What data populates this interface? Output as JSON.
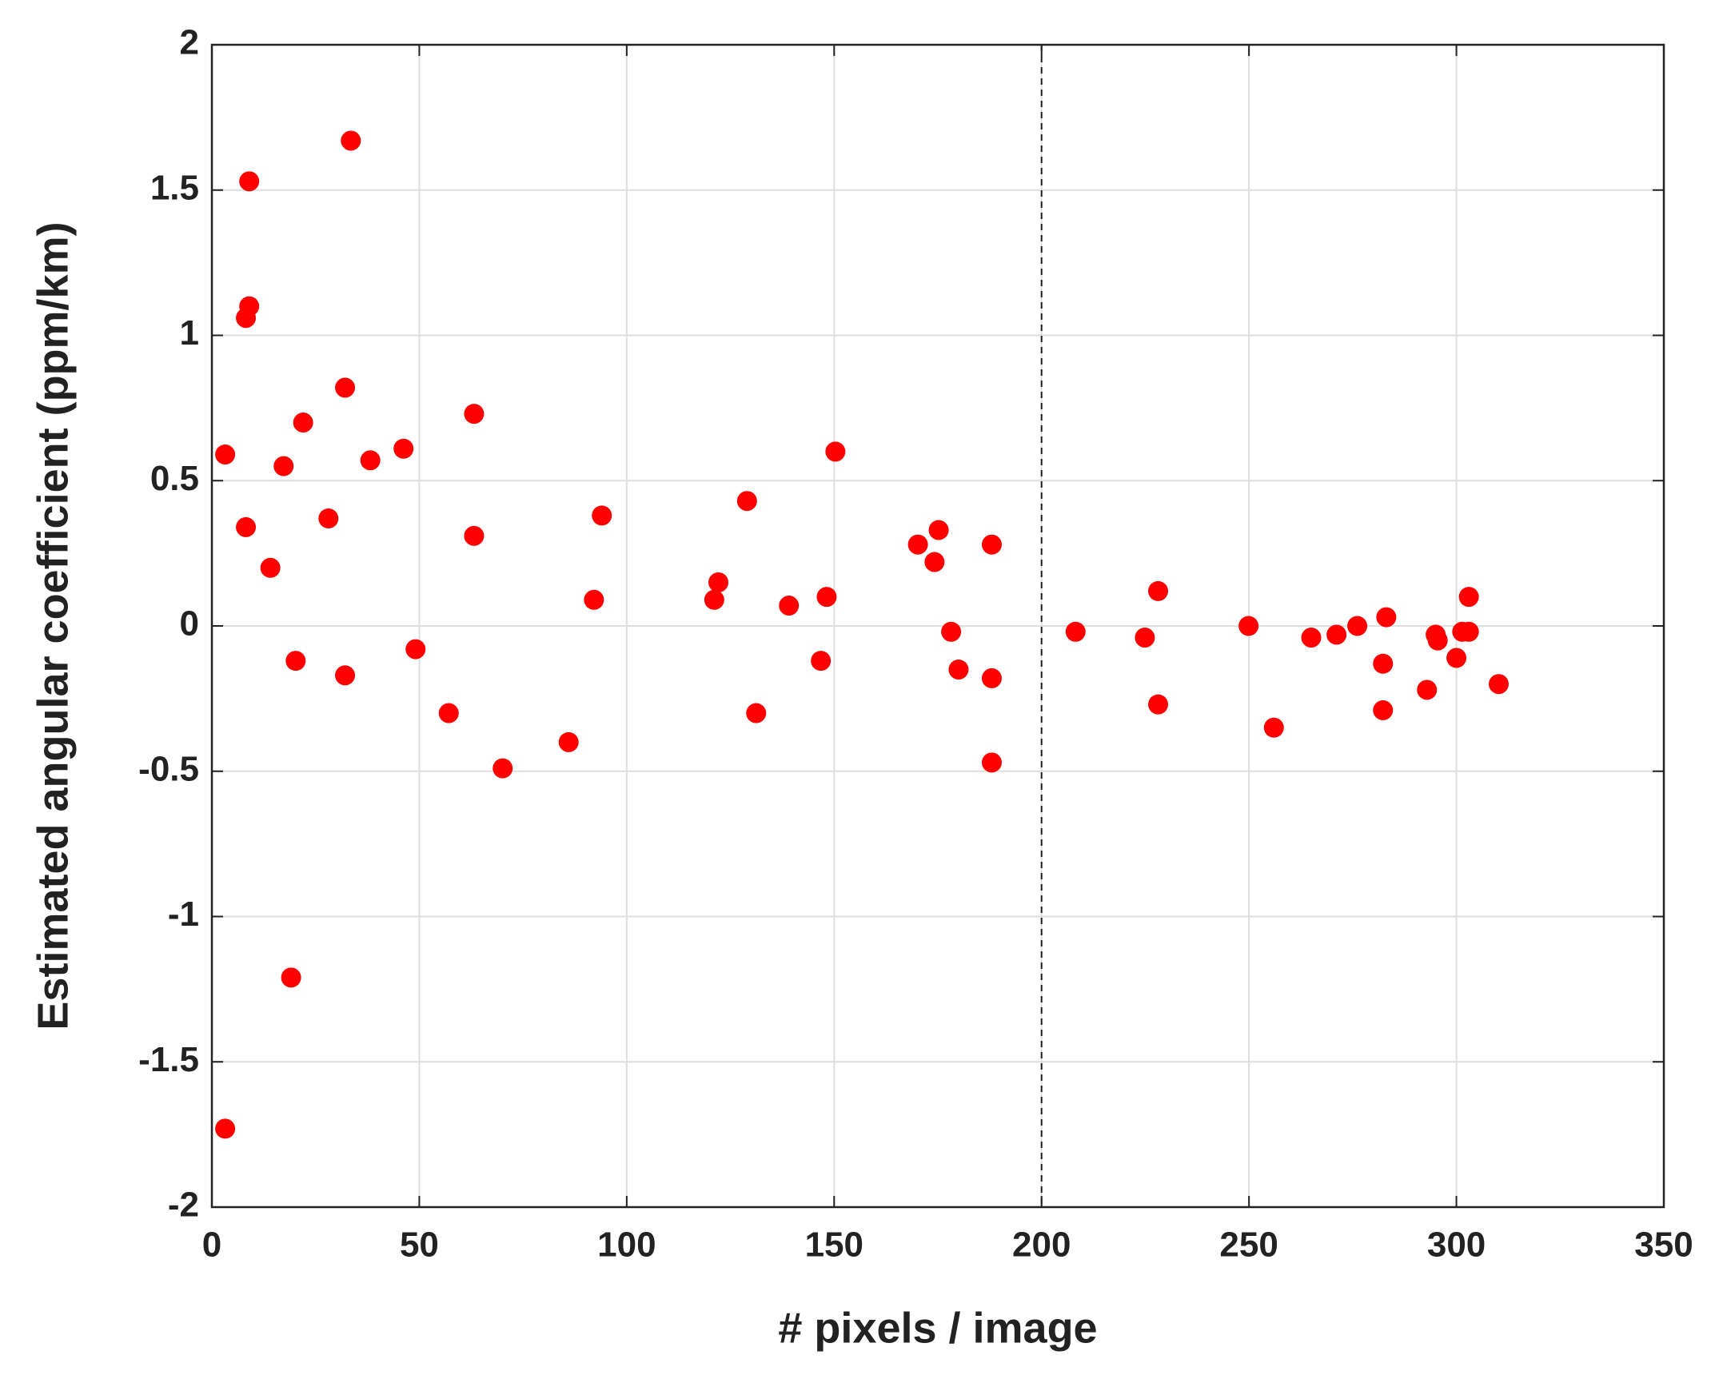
{
  "chart_data": {
    "type": "scatter",
    "xlabel": "# pixels / image",
    "ylabel": "Estimated angular coefficient (ppm/km)",
    "color": "#ff0000",
    "grid": true,
    "reference_line_x": 200,
    "xlim": [
      0,
      350
    ],
    "xticks": [
      0,
      50,
      100,
      150,
      200,
      250,
      300,
      350
    ],
    "ylim": [
      -2,
      2
    ],
    "yticks": [
      -2,
      -1.5,
      -1,
      -0.5,
      0,
      0.5,
      1,
      1.5,
      2
    ],
    "x": [
      3.2,
      3.2,
      8.2,
      8.2,
      9.0,
      9.0,
      14.1,
      17.3,
      19.1,
      20.2,
      22.0,
      28.1,
      32.1,
      32.1,
      33.5,
      38.2,
      46.2,
      49.1,
      57.1,
      63.2,
      63.2,
      70.1,
      86.0,
      92.1,
      94.0,
      121.1,
      122.1,
      129.0,
      131.2,
      139.1,
      146.8,
      148.2,
      150.3,
      170.2,
      174.2,
      175.2,
      178.2,
      180.0,
      188.0,
      188.0,
      188.0,
      208.2,
      224.9,
      228.1,
      228.1,
      249.9,
      256.0,
      265.0,
      271.1,
      276.1,
      282.3,
      283.1,
      282.3,
      292.9,
      295.0,
      295.5,
      300.0,
      301.4,
      303.0,
      303.0,
      310.2
    ],
    "values": [
      0.59,
      -1.73,
      0.34,
      1.06,
      1.1,
      1.53,
      0.2,
      0.55,
      -1.21,
      -0.12,
      0.7,
      0.37,
      0.82,
      -0.17,
      1.67,
      0.57,
      0.61,
      -0.08,
      -0.3,
      0.73,
      0.31,
      -0.49,
      -0.4,
      0.09,
      0.38,
      0.09,
      0.15,
      0.43,
      -0.3,
      0.07,
      -0.12,
      0.1,
      0.6,
      0.28,
      0.22,
      0.33,
      -0.02,
      -0.15,
      0.28,
      -0.18,
      -0.47,
      -0.02,
      -0.04,
      0.12,
      -0.27,
      0.0,
      -0.35,
      -0.04,
      -0.03,
      0.0,
      -0.13,
      0.03,
      -0.29,
      -0.22,
      -0.03,
      -0.05,
      -0.11,
      -0.02,
      -0.02,
      0.1,
      -0.2
    ]
  }
}
